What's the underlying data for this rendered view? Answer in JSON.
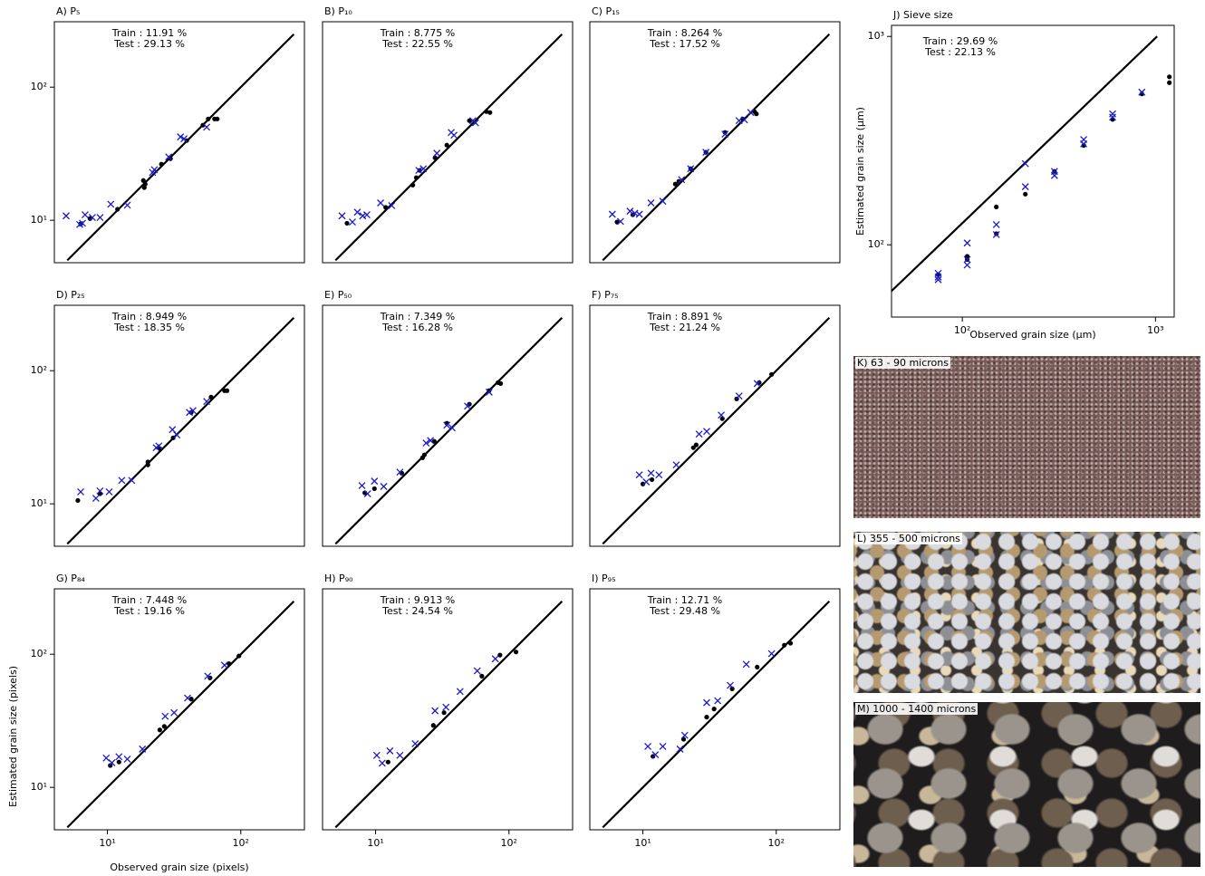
{
  "chart_data": [
    {
      "type": "scatter",
      "title": "A) P₅",
      "annotations": [
        "Train : 11.91 %",
        "Test : 29.13 %"
      ],
      "log_x": true,
      "log_y": true,
      "xlim": [
        4,
        300
      ],
      "ylim": [
        4.8,
        310
      ],
      "yticks": [
        {
          "value": 10,
          "label": "10¹"
        },
        {
          "value": 100,
          "label": "10²"
        }
      ],
      "reference_line": {
        "x": [
          5,
          250
        ],
        "y": [
          5,
          250
        ]
      },
      "series": [
        {
          "color": "#000000",
          "marker": "o",
          "x": [
            6.3,
            7.4,
            11.9,
            18.6,
            18.9,
            19.2,
            25.4,
            29.7,
            39.3,
            52,
            57,
            63.6,
            66.6
          ],
          "values": [
            9.4,
            10.3,
            12.1,
            19.9,
            17.6,
            18.7,
            26.4,
            29.0,
            39.7,
            51.8,
            57.7,
            57.7,
            57.7
          ]
        },
        {
          "color": "#1a1acd",
          "marker": "x",
          "x": [
            4.9,
            6.2,
            6.5,
            6.8,
            7.7,
            8.8,
            10.6,
            14.1,
            21.8,
            22.5,
            28.8,
            35.3,
            37.5,
            55.5
          ],
          "values": [
            10.8,
            9.3,
            9.5,
            11.0,
            10.5,
            10.5,
            13.2,
            13.0,
            22.9,
            24.0,
            29.9,
            42.3,
            41,
            50.1
          ]
        }
      ]
    },
    {
      "type": "scatter",
      "title": "B) P₁₀",
      "annotations": [
        "Train : 8.775 %",
        "Test : 22.55 %"
      ],
      "log_x": true,
      "log_y": true,
      "xlim": [
        4,
        300
      ],
      "ylim": [
        4.8,
        310
      ],
      "reference_line": {
        "x": [
          5,
          250
        ],
        "y": [
          5,
          250
        ]
      },
      "series": [
        {
          "color": "#000000",
          "marker": "o",
          "x": [
            6.1,
            11.9,
            19.0,
            20.2,
            21.4,
            27.9,
            34.2,
            50.5,
            67.7,
            72
          ],
          "values": [
            9.5,
            12.5,
            18.4,
            20.9,
            23.7,
            29.5,
            36.7,
            56.0,
            65.5,
            64.5
          ]
        },
        {
          "color": "#1a1acd",
          "marker": "x",
          "x": [
            5.6,
            6.7,
            7.3,
            8.0,
            8.6,
            10.9,
            13.2,
            21.1,
            22.8,
            28.8,
            36.9,
            38.7,
            53.6,
            56.1
          ],
          "values": [
            10.8,
            9.7,
            11.5,
            10.8,
            11.0,
            13.5,
            12.9,
            23.7,
            24.4,
            31.9,
            45.7,
            43.6,
            56,
            54
          ]
        }
      ]
    },
    {
      "type": "scatter",
      "title": "C) P₁₅",
      "annotations": [
        "Train : 8.264 %",
        "Test : 17.52 %"
      ],
      "log_x": true,
      "log_y": true,
      "xlim": [
        4,
        300
      ],
      "ylim": [
        4.8,
        310
      ],
      "reference_line": {
        "x": [
          5,
          250
        ],
        "y": [
          5,
          250
        ]
      },
      "series": [
        {
          "color": "#000000",
          "marker": "o",
          "x": [
            6.4,
            8.4,
            17.5,
            18.6,
            22.8,
            29.7,
            41.3,
            56,
            68.7,
            71
          ],
          "values": [
            9.7,
            11.0,
            18.7,
            19.6,
            24.4,
            32.4,
            45.7,
            57.7,
            65.5,
            63
          ]
        },
        {
          "color": "#1a1acd",
          "marker": "x",
          "x": [
            5.9,
            6.8,
            8.0,
            8.7,
            9.4,
            11.5,
            14.1,
            19.5,
            22.8,
            29.7,
            41.3,
            52.6,
            57.8,
            64.4
          ],
          "values": [
            11.1,
            9.8,
            11.7,
            11.3,
            11.1,
            13.5,
            13.9,
            20.2,
            24.4,
            32.4,
            44.4,
            56,
            56.8,
            64.5
          ]
        }
      ]
    },
    {
      "type": "scatter",
      "title": "D) P₂₅",
      "annotations": [
        "Train : 8.949 %",
        "Test : 18.35 %"
      ],
      "log_x": true,
      "log_y": true,
      "xlim": [
        4,
        300
      ],
      "ylim": [
        4.8,
        310
      ],
      "yticks": [
        {
          "value": 10,
          "label": "10¹"
        },
        {
          "value": 100,
          "label": "10²"
        }
      ],
      "reference_line": {
        "x": [
          5,
          250
        ],
        "y": [
          5,
          250
        ]
      },
      "series": [
        {
          "color": "#000000",
          "marker": "o",
          "x": [
            6.0,
            8.8,
            20.1,
            20.1,
            24.7,
            31.1,
            42.5,
            59.9,
            75.5,
            78.8
          ],
          "values": [
            10.6,
            11.9,
            20.6,
            19.6,
            26.0,
            31.3,
            48.6,
            63.3,
            70.8,
            70.8
          ]
        },
        {
          "color": "#1a1acd",
          "marker": "x",
          "x": [
            6.3,
            8.2,
            8.8,
            10.3,
            12.8,
            15.2,
            23.2,
            24.3,
            30.7,
            33.2,
            41.2,
            43.8,
            55.5
          ],
          "values": [
            12.3,
            11.0,
            12.5,
            12.3,
            15.0,
            15.0,
            26.4,
            27.2,
            36.1,
            32.9,
            48.6,
            50.2,
            58.7
          ]
        }
      ]
    },
    {
      "type": "scatter",
      "title": "E) P₅₀",
      "annotations": [
        "Train : 7.349 %",
        "Test : 16.28 %"
      ],
      "log_x": true,
      "log_y": true,
      "xlim": [
        4,
        300
      ],
      "ylim": [
        4.8,
        310
      ],
      "reference_line": {
        "x": [
          5,
          250
        ],
        "y": [
          5,
          250
        ]
      },
      "series": [
        {
          "color": "#000000",
          "marker": "o",
          "x": [
            8.3,
            9.8,
            15.7,
            22.5,
            23.2,
            27.5,
            34.2,
            50.5,
            71,
            82.8,
            86.6
          ],
          "values": [
            12.1,
            13.0,
            17.0,
            22.2,
            23.3,
            29.5,
            40.3,
            56.0,
            70.8,
            81.4,
            80.1
          ]
        },
        {
          "color": "#1a1acd",
          "marker": "x",
          "x": [
            7.9,
            8.7,
            9.8,
            11.5,
            15.2,
            23.9,
            25.8,
            34.2,
            37.5,
            48.9,
            71
          ],
          "values": [
            13.7,
            11.9,
            14.8,
            13.5,
            17.3,
            28.6,
            29.9,
            39.0,
            37.2,
            54.2,
            69.0
          ]
        }
      ]
    },
    {
      "type": "scatter",
      "title": "F) P₇₅",
      "annotations": [
        "Train : 8.891 %",
        "Test : 21.24 %"
      ],
      "log_x": true,
      "log_y": true,
      "xlim": [
        4,
        300
      ],
      "ylim": [
        4.8,
        310
      ],
      "reference_line": {
        "x": [
          5,
          250
        ],
        "y": [
          5,
          250
        ]
      },
      "series": [
        {
          "color": "#000000",
          "marker": "o",
          "x": [
            10,
            11.7,
            23.9,
            25.1,
            39.4,
            50.5,
            74.5,
            92.3
          ],
          "values": [
            14.1,
            15.2,
            26.4,
            27.7,
            43.6,
            61.4,
            81.4,
            93.8
          ]
        },
        {
          "color": "#1a1acd",
          "marker": "x",
          "x": [
            9.4,
            10.6,
            11.5,
            13.2,
            17.8,
            26.4,
            30.1,
            38.7,
            52.6,
            72
          ],
          "values": [
            16.5,
            14.6,
            17.0,
            16.5,
            19.6,
            33.4,
            35.0,
            46.4,
            64.5,
            80.1
          ]
        }
      ]
    },
    {
      "type": "scatter",
      "title": "G) P₈₄",
      "annotations": [
        "Train : 7.448 %",
        "Test : 19.16 %"
      ],
      "log_x": true,
      "log_y": true,
      "xlim": [
        4,
        300
      ],
      "ylim": [
        4.8,
        310
      ],
      "x_label": "Observed grain size (pixels)",
      "y_label": "Estimated grain size (pixels)",
      "xticks": [
        {
          "value": 10,
          "label": "10¹"
        },
        {
          "value": 100,
          "label": "10²"
        }
      ],
      "yticks": [
        {
          "value": 10,
          "label": "10¹"
        },
        {
          "value": 100,
          "label": "10²"
        }
      ],
      "reference_line": {
        "x": [
          5,
          250
        ],
        "y": [
          5,
          250
        ]
      },
      "series": [
        {
          "color": "#000000",
          "marker": "o",
          "x": [
            10.5,
            12.2,
            24.7,
            26.7,
            42.5,
            58.8,
            81.5,
            96.8
          ],
          "values": [
            14.6,
            15.5,
            27.0,
            28.7,
            46.1,
            66.4,
            85.0,
            97.1
          ]
        },
        {
          "color": "#1a1acd",
          "marker": "x",
          "x": [
            9.8,
            10.8,
            12.2,
            14.1,
            18.3,
            27.1,
            31.6,
            39.9,
            56.5,
            75.5
          ],
          "values": [
            16.6,
            15.3,
            17.0,
            16.3,
            19.4,
            34.2,
            36.4,
            46.9,
            68.5,
            82.8
          ]
        }
      ]
    },
    {
      "type": "scatter",
      "title": "H) P₉₀",
      "annotations": [
        "Train : 9.913 %",
        "Test : 24.54 %"
      ],
      "log_x": true,
      "log_y": true,
      "xlim": [
        4,
        300
      ],
      "ylim": [
        4.8,
        310
      ],
      "xticks": [
        {
          "value": 10,
          "label": "10¹"
        },
        {
          "value": 100,
          "label": "10²"
        }
      ],
      "reference_line": {
        "x": [
          5,
          250
        ],
        "y": [
          5,
          250
        ]
      },
      "series": [
        {
          "color": "#000000",
          "marker": "o",
          "x": [
            12.4,
            27.1,
            32.6,
            62.6,
            85.6,
            112.9
          ],
          "values": [
            15.5,
            29.2,
            36.4,
            68.5,
            98.6,
            104
          ]
        },
        {
          "color": "#1a1acd",
          "marker": "x",
          "x": [
            10.2,
            11.2,
            12.8,
            15.2,
            19.8,
            27.9,
            33.7,
            43,
            57.8,
            79
          ],
          "values": [
            17.4,
            15.2,
            18.8,
            17.4,
            21.3,
            37.6,
            40,
            52.5,
            75.0,
            92.4
          ]
        }
      ]
    },
    {
      "type": "scatter",
      "title": "I) P₉₅",
      "annotations": [
        "Train : 12.71 %",
        "Test : 29.48 %"
      ],
      "log_x": true,
      "log_y": true,
      "xlim": [
        4,
        300
      ],
      "ylim": [
        4.8,
        310
      ],
      "xticks": [
        {
          "value": 10,
          "label": "10¹"
        },
        {
          "value": 100,
          "label": "10²"
        }
      ],
      "reference_line": {
        "x": [
          5,
          250
        ],
        "y": [
          5,
          250
        ]
      },
      "series": [
        {
          "color": "#000000",
          "marker": "o",
          "x": [
            11.9,
            20.2,
            30.1,
            34.2,
            46.7,
            72,
            115,
            128
          ],
          "values": [
            17.1,
            23.0,
            33.7,
            38.8,
            55.0,
            80.1,
            117,
            121
          ]
        },
        {
          "color": "#1a1acd",
          "marker": "x",
          "x": [
            10.9,
            12.4,
            14.1,
            19.0,
            20.6,
            30.1,
            36.4,
            45.2,
            59.6,
            92.3
          ],
          "values": [
            20.3,
            17.6,
            20.3,
            19.4,
            24.6,
            43.3,
            44.7,
            58.4,
            84.0,
            101
          ]
        }
      ]
    },
    {
      "type": "scatter",
      "title": "J) Sieve size",
      "annotations": [
        "Train : 29.69 %",
        "Test : 22.13 %"
      ],
      "log_x": true,
      "log_y": true,
      "xlim": [
        43,
        1250
      ],
      "ylim": [
        45,
        1130
      ],
      "x_label": "Observed grain size (µm)",
      "y_label": "Estimated grain size (µm)",
      "xticks": [
        {
          "value": 100,
          "label": "10²"
        },
        {
          "value": 1000,
          "label": "10³"
        }
      ],
      "yticks": [
        {
          "value": 100,
          "label": "10²"
        },
        {
          "value": 1000,
          "label": "10³"
        }
      ],
      "reference_line": {
        "x": [
          43,
          1020
        ],
        "y": [
          60,
          1000
        ]
      },
      "series": [
        {
          "color": "#000000",
          "marker": "o",
          "x": [
            75,
            106,
            106,
            150,
            150,
            212,
            300,
            425,
            600,
            850,
            1180,
            1180
          ],
          "values": [
            72,
            88,
            85,
            152,
            113,
            175,
            225,
            300,
            400,
            530,
            600,
            640
          ]
        },
        {
          "color": "#1a1acd",
          "marker": "x",
          "x": [
            75,
            75,
            75,
            106,
            106,
            106,
            150,
            150,
            212,
            212,
            300,
            300,
            425,
            425,
            600,
            600,
            850
          ],
          "values": [
            73,
            70,
            68,
            102,
            85,
            80,
            125,
            112,
            245,
            190,
            225,
            215,
            320,
            305,
            425,
            410,
            540
          ]
        }
      ]
    }
  ],
  "photos": [
    {
      "label": "K) 63 - 90 microns"
    },
    {
      "label": "L) 355 - 500 microns"
    },
    {
      "label": "M) 1000 - 1400 microns"
    }
  ]
}
